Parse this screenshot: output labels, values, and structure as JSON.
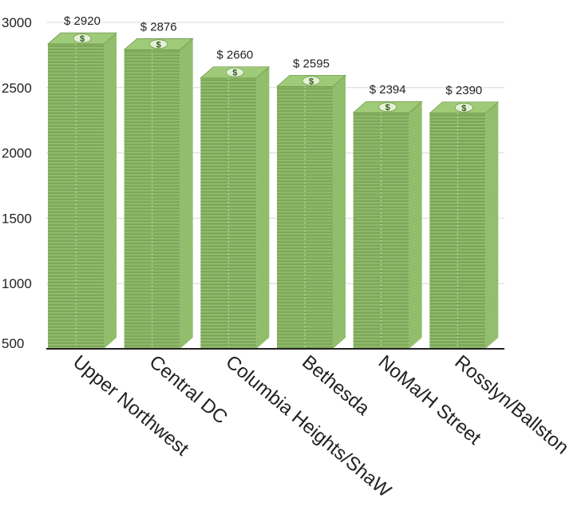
{
  "chart_data": {
    "type": "bar",
    "style": "3d-money-stacks",
    "categories": [
      "Upper Northwest",
      "Central DC",
      "Columbia Heights/ShaW",
      "Bethesda",
      "NoMa/H Street",
      "Rosslyn/Ballston"
    ],
    "values": [
      2920,
      2876,
      2660,
      2595,
      2394,
      2390
    ],
    "value_labels": [
      "$ 2920",
      "$ 2876",
      "$ 2660",
      "$ 2595",
      "$ 2394",
      "$ 2390"
    ],
    "y_ticks": [
      500,
      1000,
      1500,
      2000,
      2500,
      3000
    ],
    "ylim": [
      500,
      3000
    ],
    "grid": true,
    "colors": {
      "bill_face": "#86b061",
      "bill_edge": "#a9cf86",
      "bill_dark": "#5f8a3c",
      "side": "#97c270",
      "top": "#9fcb78",
      "grid": "#d9d9d9",
      "axis": "#222222"
    }
  }
}
